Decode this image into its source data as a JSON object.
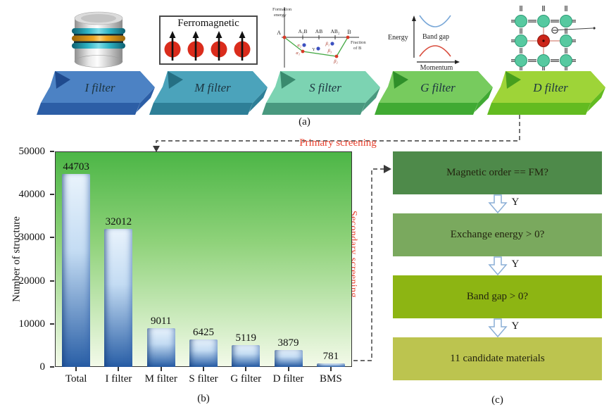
{
  "figure": {
    "label_a": "(a)",
    "label_b": "(b)",
    "label_c": "(c)"
  },
  "panel_a": {
    "banners": [
      {
        "label": "I filter",
        "face": "#4c82c4",
        "side": "#2c5ea6",
        "fold": "#1f4a8e"
      },
      {
        "label": "M filter",
        "face": "#4ba3bb",
        "side": "#2e7f97",
        "fold": "#256f83"
      },
      {
        "label": "S filter",
        "face": "#7cd3b2",
        "side": "#49997f",
        "fold": "#3a8a6e"
      },
      {
        "label": "G filter",
        "face": "#77cb5e",
        "side": "#40aa33",
        "fold": "#2f8f2a"
      },
      {
        "label": "D filter",
        "face": "#9ed438",
        "side": "#63bb20",
        "fold": "#479e1e"
      }
    ],
    "ferromagnetic": {
      "title": "Ferromagnetic",
      "spin_color": "#da2c1c"
    },
    "hull_plot": {
      "ylabel_line1": "Formation",
      "ylabel_line2": "energy",
      "xlabel_line1": "Fraction",
      "xlabel_line2": "of B",
      "endpoint_a": "A",
      "endpoint_b": "B",
      "tick1": "A₂B",
      "tick2": "AB",
      "tick3": "AB₂",
      "pt_alpha2": "α₂",
      "pt_alpha1": "α₁",
      "pt_y": "Y",
      "pt_beta1": "β₁",
      "pt_beta3": "β₃",
      "pt_beta2": "β₂"
    },
    "band_plot": {
      "ylabel": "Energy",
      "xlabel": "Momentum",
      "gap_label": "Band gap"
    }
  },
  "screening": {
    "primary": "Primary screening",
    "secondary": "Secondary screening",
    "color": "#e8402c"
  },
  "chart_data": {
    "type": "bar",
    "categories": [
      "Total",
      "I filter",
      "M filter",
      "S filter",
      "G filter",
      "D filter",
      "BMS"
    ],
    "values": [
      44703,
      32012,
      9011,
      6425,
      5119,
      3879,
      781
    ],
    "title": "",
    "xlabel": "",
    "ylabel": "Number of structure",
    "ylim": [
      0,
      50000
    ],
    "ytick_step": 10000,
    "grid": false,
    "legend": false,
    "bar_colors": {
      "light": "#e9f3fc",
      "mid": "#c4dcf3",
      "dark": "#285ea6"
    },
    "plot_bg": {
      "top": "#4cb646",
      "mid": "#8fd27a",
      "bottom": "#f3fae9"
    }
  },
  "panel_c": {
    "boxes": [
      {
        "text": "Magnetic order == FM?",
        "color": "#4e8a4a"
      },
      {
        "text": "Exchange energy > 0?",
        "color": "#7aa95e"
      },
      {
        "text": "Band gap > 0?",
        "color": "#8db513"
      },
      {
        "text": "11 candidate materials",
        "color": "#bcc44f"
      }
    ],
    "arrow_label": "Y"
  }
}
